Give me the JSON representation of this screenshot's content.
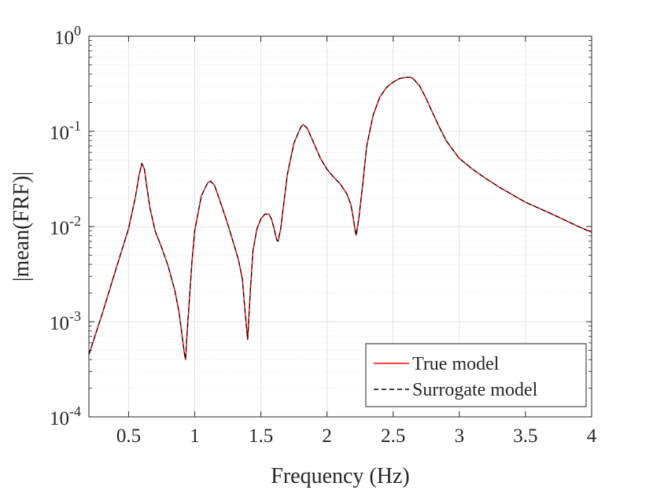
{
  "chart_data": {
    "type": "line",
    "title": "",
    "xlabel": "Frequency (Hz)",
    "ylabel": "|mean(FRF)|",
    "xlim": [
      0.2,
      4
    ],
    "ylim": [
      0.0001,
      1
    ],
    "yscale": "log",
    "grid": true,
    "minor_grid": true,
    "x_ticks": [
      0.5,
      1,
      1.5,
      2,
      2.5,
      3,
      3.5,
      4
    ],
    "x_tick_labels": [
      "0.5",
      "1",
      "1.5",
      "2",
      "2.5",
      "3",
      "3.5",
      "4"
    ],
    "y_ticks": [
      0.0001,
      0.001,
      0.01,
      0.1,
      1
    ],
    "y_tick_labels": [
      {
        "base": "10",
        "exp": "-4"
      },
      {
        "base": "10",
        "exp": "-3"
      },
      {
        "base": "10",
        "exp": "-2"
      },
      {
        "base": "10",
        "exp": "-1"
      },
      {
        "base": "10",
        "exp": "0"
      }
    ],
    "legend_position": "bottom-right",
    "series": [
      {
        "name": "True model",
        "color": "#ff0000",
        "style": "solid",
        "x": [
          0.2,
          0.3,
          0.4,
          0.5,
          0.55,
          0.58,
          0.6,
          0.62,
          0.64,
          0.66,
          0.7,
          0.75,
          0.8,
          0.85,
          0.88,
          0.9,
          0.92,
          0.93,
          0.95,
          0.98,
          1.0,
          1.05,
          1.1,
          1.12,
          1.15,
          1.2,
          1.25,
          1.3,
          1.33,
          1.36,
          1.38,
          1.4,
          1.42,
          1.44,
          1.47,
          1.5,
          1.53,
          1.56,
          1.58,
          1.6,
          1.62,
          1.63,
          1.65,
          1.7,
          1.75,
          1.8,
          1.82,
          1.85,
          1.9,
          1.95,
          2.0,
          2.05,
          2.1,
          2.15,
          2.18,
          2.2,
          2.21,
          2.22,
          2.24,
          2.27,
          2.3,
          2.35,
          2.4,
          2.45,
          2.5,
          2.55,
          2.6,
          2.63,
          2.65,
          2.7,
          2.75,
          2.8,
          2.85,
          2.9,
          3.0,
          3.1,
          3.2,
          3.3,
          3.5,
          3.7,
          3.9,
          4.0
        ],
        "values": [
          0.00045,
          0.0012,
          0.0034,
          0.0095,
          0.02,
          0.035,
          0.046,
          0.04,
          0.025,
          0.016,
          0.009,
          0.006,
          0.0038,
          0.0021,
          0.0013,
          0.0008,
          0.00048,
          0.0004,
          0.0011,
          0.0045,
          0.009,
          0.021,
          0.029,
          0.03,
          0.027,
          0.017,
          0.0105,
          0.0062,
          0.0045,
          0.0028,
          0.0013,
          0.00065,
          0.0021,
          0.0055,
          0.0095,
          0.012,
          0.0135,
          0.0135,
          0.012,
          0.0095,
          0.0072,
          0.007,
          0.0095,
          0.035,
          0.075,
          0.11,
          0.118,
          0.108,
          0.075,
          0.052,
          0.04,
          0.033,
          0.028,
          0.022,
          0.017,
          0.012,
          0.0095,
          0.0081,
          0.012,
          0.028,
          0.07,
          0.15,
          0.23,
          0.29,
          0.33,
          0.36,
          0.37,
          0.37,
          0.36,
          0.3,
          0.22,
          0.155,
          0.11,
          0.08,
          0.052,
          0.04,
          0.032,
          0.026,
          0.018,
          0.0135,
          0.01,
          0.0087
        ]
      },
      {
        "name": "Surrogate model",
        "color": "#000000",
        "style": "dashed",
        "x": [
          0.2,
          0.3,
          0.4,
          0.5,
          0.55,
          0.58,
          0.6,
          0.62,
          0.64,
          0.66,
          0.7,
          0.75,
          0.8,
          0.85,
          0.88,
          0.9,
          0.92,
          0.93,
          0.95,
          0.98,
          1.0,
          1.05,
          1.1,
          1.12,
          1.15,
          1.2,
          1.25,
          1.3,
          1.33,
          1.36,
          1.38,
          1.4,
          1.42,
          1.44,
          1.47,
          1.5,
          1.53,
          1.56,
          1.58,
          1.6,
          1.62,
          1.63,
          1.65,
          1.7,
          1.75,
          1.8,
          1.82,
          1.85,
          1.9,
          1.95,
          2.0,
          2.05,
          2.1,
          2.15,
          2.18,
          2.2,
          2.21,
          2.22,
          2.24,
          2.27,
          2.3,
          2.35,
          2.4,
          2.45,
          2.5,
          2.55,
          2.6,
          2.63,
          2.65,
          2.7,
          2.75,
          2.8,
          2.85,
          2.9,
          3.0,
          3.1,
          3.2,
          3.3,
          3.5,
          3.7,
          3.9,
          4.0
        ],
        "values": [
          0.00045,
          0.0012,
          0.0034,
          0.0095,
          0.02,
          0.035,
          0.046,
          0.04,
          0.025,
          0.016,
          0.009,
          0.006,
          0.0038,
          0.0021,
          0.0013,
          0.0008,
          0.00048,
          0.0004,
          0.0011,
          0.0045,
          0.009,
          0.021,
          0.029,
          0.03,
          0.027,
          0.017,
          0.0105,
          0.0062,
          0.0045,
          0.0028,
          0.0013,
          0.00065,
          0.0021,
          0.0055,
          0.0095,
          0.012,
          0.0135,
          0.0135,
          0.012,
          0.0095,
          0.0072,
          0.007,
          0.0095,
          0.035,
          0.075,
          0.11,
          0.118,
          0.108,
          0.075,
          0.052,
          0.04,
          0.033,
          0.028,
          0.022,
          0.017,
          0.012,
          0.0095,
          0.0081,
          0.012,
          0.028,
          0.07,
          0.15,
          0.23,
          0.29,
          0.33,
          0.36,
          0.37,
          0.37,
          0.36,
          0.3,
          0.22,
          0.155,
          0.11,
          0.08,
          0.052,
          0.04,
          0.032,
          0.026,
          0.018,
          0.0135,
          0.01,
          0.0087
        ]
      }
    ]
  }
}
